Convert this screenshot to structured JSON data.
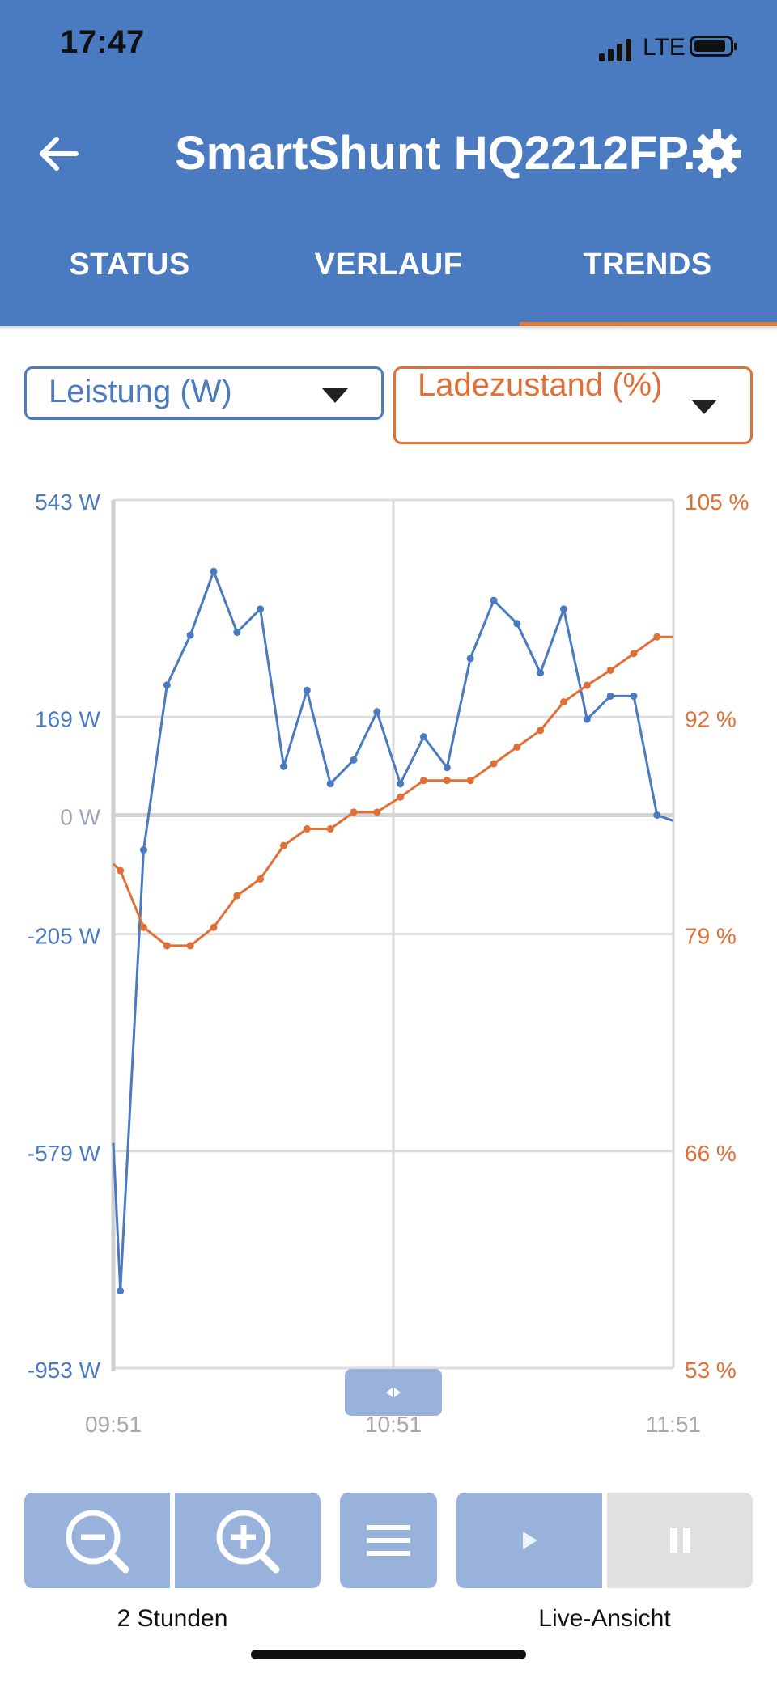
{
  "status_bar": {
    "time": "17:47",
    "network": "LTE",
    "icons": [
      "signal-bars-icon",
      "battery-icon"
    ]
  },
  "header": {
    "title": "SmartShunt HQ2212FP...",
    "back_icon": "arrow-left-icon",
    "settings_icon": "gear-icon"
  },
  "tabs": [
    {
      "label": "STATUS",
      "active": false
    },
    {
      "label": "VERLAUF",
      "active": false
    },
    {
      "label": "TRENDS",
      "active": true
    }
  ],
  "selectors": {
    "left": {
      "value": "Leistung (W)",
      "color": "#4a7ac0"
    },
    "right": {
      "value": "Ladezustand (%)",
      "color": "#e07035"
    }
  },
  "chart_data": {
    "type": "line",
    "x_ticks": [
      "09:51",
      "10:51",
      "11:51"
    ],
    "y_left": {
      "ticks": [
        "543 W",
        "169 W",
        "0 W",
        "-205 W",
        "-579 W",
        "-953 W"
      ],
      "ticks_values": [
        543,
        169,
        0,
        -205,
        -579,
        -953
      ],
      "range": [
        -953,
        543
      ],
      "unit": "W"
    },
    "y_right": {
      "ticks": [
        "105 %",
        "92 %",
        "79 %",
        "66 %",
        "53 %"
      ],
      "ticks_values": [
        105,
        92,
        79,
        66,
        53
      ],
      "range": [
        53,
        105
      ],
      "unit": "%"
    },
    "x_range_minutes": [
      0,
      120
    ],
    "grid": true,
    "series": [
      {
        "axis": "left",
        "color": "#4a7ac0",
        "points": [
          [
            0,
            -565
          ],
          [
            1.5,
            -820
          ],
          [
            6.5,
            -60
          ],
          [
            11.5,
            224
          ],
          [
            16.5,
            310
          ],
          [
            21.5,
            420
          ],
          [
            26.5,
            315
          ],
          [
            31.5,
            355
          ],
          [
            36.5,
            84
          ],
          [
            41.5,
            215
          ],
          [
            46.5,
            54
          ],
          [
            51.5,
            95
          ],
          [
            56.5,
            178
          ],
          [
            61.5,
            54
          ],
          [
            66.5,
            135
          ],
          [
            71.5,
            82
          ],
          [
            76.5,
            270
          ],
          [
            81.5,
            370
          ],
          [
            86.5,
            330
          ],
          [
            91.5,
            245
          ],
          [
            96.5,
            355
          ],
          [
            101.5,
            165
          ],
          [
            106.5,
            205
          ],
          [
            111.5,
            205
          ],
          [
            116.5,
            0
          ],
          [
            120,
            -10
          ]
        ]
      },
      {
        "axis": "right",
        "color": "#e07035",
        "points": [
          [
            0,
            83.2
          ],
          [
            1.5,
            82.8
          ],
          [
            6.5,
            79.4
          ],
          [
            11.5,
            78.3
          ],
          [
            16.5,
            78.3
          ],
          [
            21.5,
            79.4
          ],
          [
            26.5,
            81.3
          ],
          [
            31.5,
            82.3
          ],
          [
            36.5,
            84.3
          ],
          [
            41.5,
            85.3
          ],
          [
            46.5,
            85.3
          ],
          [
            51.5,
            86.3
          ],
          [
            56.5,
            86.3
          ],
          [
            61.5,
            87.2
          ],
          [
            66.5,
            88.2
          ],
          [
            71.5,
            88.2
          ],
          [
            76.5,
            88.2
          ],
          [
            81.5,
            89.2
          ],
          [
            86.5,
            90.2
          ],
          [
            91.5,
            91.2
          ],
          [
            96.5,
            92.9
          ],
          [
            101.5,
            93.9
          ],
          [
            106.5,
            94.8
          ],
          [
            111.5,
            95.8
          ],
          [
            116.5,
            96.8
          ],
          [
            120,
            96.8
          ]
        ]
      }
    ]
  },
  "controls": {
    "zoom_caption": "2 Stunden",
    "live_caption": "Live-Ansicht",
    "buttons": [
      "zoom-out-icon",
      "zoom-in-icon",
      "menu-icon",
      "play-icon",
      "pause-icon"
    ]
  }
}
